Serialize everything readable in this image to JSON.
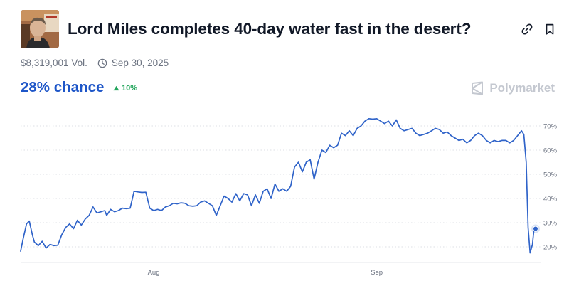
{
  "market": {
    "title": "Lord Miles completes 40-day water fast in the desert?",
    "volume": "$8,319,001 Vol.",
    "end_date": "Sep 30, 2025",
    "chance": "28% chance",
    "change": "10%"
  },
  "brand": {
    "name": "Polymarket"
  },
  "icons": {
    "link": "link-icon",
    "bookmark": "bookmark-icon",
    "clock": "clock-icon",
    "up": "triangle-up-icon",
    "logo": "polymarket-logo-icon"
  },
  "colors": {
    "line": "#2f63c9",
    "accent": "#1e56c8",
    "positive": "#22a55b",
    "brand": "#c4c8d0"
  },
  "chart_data": {
    "type": "line",
    "ylim": [
      15,
      75
    ],
    "y_ticks": [
      "70%",
      "60%",
      "50%",
      "40%",
      "30%",
      "20%"
    ],
    "y_tick_values": [
      70,
      60,
      50,
      40,
      30,
      20
    ],
    "x_ticks": [
      "Aug",
      "Sep"
    ],
    "x_tick_positions": [
      34,
      91
    ],
    "grid": true,
    "legend": "none",
    "series": [
      {
        "x": [
          0,
          0.6,
          1.5,
          2.2,
          3,
          3.5,
          4.5,
          5.5,
          6.5,
          7.5,
          8.5,
          9.5,
          10.5,
          11.5,
          12.5,
          13.5,
          14.5,
          15.5,
          16.5,
          17.5,
          18.5,
          19.5,
          20.5,
          21.5,
          22,
          23,
          24,
          25,
          26,
          27,
          28,
          29,
          30,
          31,
          32,
          33,
          34,
          35,
          36,
          37,
          38,
          39,
          40,
          41,
          42,
          43,
          44,
          45,
          46,
          47,
          48,
          49,
          50,
          51,
          52,
          53,
          54,
          55,
          56,
          57,
          58,
          59,
          60,
          61,
          62,
          63,
          64,
          65,
          66,
          67,
          68,
          69,
          70,
          71,
          72,
          73,
          74,
          75,
          76,
          77,
          78,
          79,
          80,
          81,
          82,
          83,
          84,
          85,
          86,
          87,
          88,
          89,
          90,
          91,
          92,
          93,
          94,
          95,
          96,
          97,
          98,
          99,
          100,
          101,
          102,
          103,
          104,
          105,
          106,
          107,
          108,
          109,
          110,
          111,
          112,
          113,
          114,
          115,
          116,
          117,
          118,
          119,
          120,
          121,
          122,
          123,
          124,
          125,
          126,
          127,
          128,
          128.6,
          129.2,
          129.7,
          130.2,
          130.8,
          131.2,
          131.6
        ],
        "values": [
          18.2,
          23,
          29.5,
          30.7,
          25,
          22,
          20.5,
          22.3,
          19.5,
          21,
          20.5,
          20.7,
          25,
          28,
          29.5,
          27.5,
          31,
          29,
          31.5,
          33,
          36.5,
          34,
          34.5,
          35,
          33,
          35.5,
          34.5,
          35,
          36,
          35.8,
          36,
          43,
          42.7,
          42.5,
          42.6,
          36,
          35,
          35.5,
          35,
          36.5,
          37,
          38,
          37.8,
          38.2,
          38,
          37,
          36.8,
          37,
          38.5,
          39,
          38,
          37,
          33,
          37,
          41,
          40,
          38.5,
          42,
          39,
          42,
          41.5,
          37,
          41.5,
          38,
          43,
          44,
          40,
          46,
          43,
          44,
          43,
          45,
          53,
          55,
          51,
          55,
          56,
          48,
          55,
          60,
          59,
          62,
          61,
          62,
          67,
          66,
          68,
          66,
          69,
          70,
          72,
          73,
          72.8,
          73,
          72,
          71,
          72,
          70,
          72.5,
          69,
          68,
          68.5,
          69,
          67,
          66,
          66.5,
          67,
          68,
          69,
          68.5,
          67,
          67.5,
          66,
          65,
          64,
          64.5,
          63,
          64,
          66,
          67,
          66,
          64,
          63,
          64,
          63.5,
          64,
          64,
          63,
          64,
          66,
          68,
          66.5,
          55,
          28,
          17.5,
          21,
          27.5,
          27.5
        ]
      }
    ]
  }
}
